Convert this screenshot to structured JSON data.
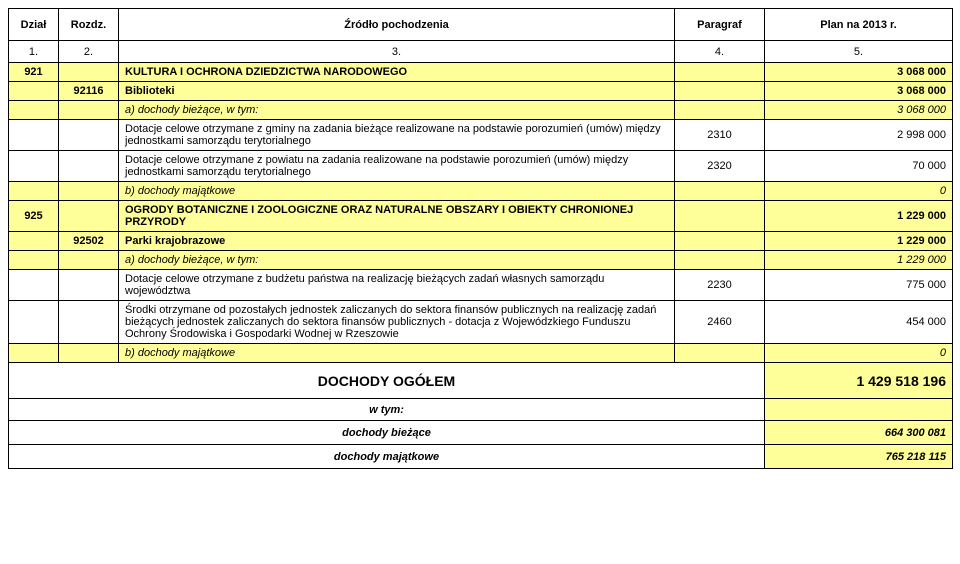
{
  "colors": {
    "highlight": "#ffff99",
    "border": "#000000",
    "bg": "#ffffff",
    "text": "#000000"
  },
  "header": {
    "dzial": "Dział",
    "rozdz": "Rozdz.",
    "zrodlo": "Źródło pochodzenia",
    "paragraf": "Paragraf",
    "plan": "Plan na 2013 r."
  },
  "numrow": {
    "c1": "1.",
    "c2": "2.",
    "c3": "3.",
    "c4": "4.",
    "c5": "5."
  },
  "r_921": {
    "dzial": "921",
    "title": "KULTURA I OCHRONA DZIEDZICTWA NARODOWEGO",
    "plan": "3 068 000"
  },
  "r_92116": {
    "rozdz": "92116",
    "title": "Biblioteki",
    "plan": "3 068 000"
  },
  "r_92116_a": {
    "title": "a) dochody bieżące, w tym:",
    "plan": "3 068 000"
  },
  "r_92116_d1": {
    "title": "Dotacje celowe otrzymane z gminy na zadania bieżące realizowane na podstawie porozumień (umów) między jednostkami samorządu terytorialnego",
    "par": "2310",
    "plan": "2 998 000"
  },
  "r_92116_d2": {
    "title": "Dotacje celowe otrzymane z powiatu na zadania realizowane na podstawie porozumień (umów) między jednostkami samorządu terytorialnego",
    "par": "2320",
    "plan": "70 000"
  },
  "r_92116_b": {
    "title": "b) dochody majątkowe",
    "plan": "0"
  },
  "r_925": {
    "dzial": "925",
    "title": "OGRODY BOTANICZNE I ZOOLOGICZNE ORAZ NATURALNE OBSZARY I OBIEKTY CHRONIONEJ PRZYRODY",
    "plan": "1 229 000"
  },
  "r_92502": {
    "rozdz": "92502",
    "title": "Parki krajobrazowe",
    "plan": "1 229 000"
  },
  "r_92502_a": {
    "title": "a) dochody bieżące, w tym:",
    "plan": "1 229 000"
  },
  "r_92502_d1": {
    "title": "Dotacje celowe otrzymane z budżetu państwa na realizację bieżących zadań własnych samorządu województwa",
    "par": "2230",
    "plan": "775 000"
  },
  "r_92502_d2": {
    "title": "Środki otrzymane od pozostałych jednostek zaliczanych do sektora finansów publicznych na realizację zadań bieżących jednostek zaliczanych do sektora finansów publicznych - dotacja z Wojewódzkiego Funduszu Ochrony Środowiska i Gospodarki Wodnej w Rzeszowie",
    "par": "2460",
    "plan": "454 000"
  },
  "r_92502_b": {
    "title": "b) dochody majątkowe",
    "plan": "0"
  },
  "total": {
    "label": "DOCHODY OGÓŁEM",
    "value": "1 429 518 196"
  },
  "wtym": "w tym:",
  "biez": {
    "label": "dochody bieżące",
    "value": "664 300 081"
  },
  "maj": {
    "label": "dochody majątkowe",
    "value": "765 218 115"
  }
}
